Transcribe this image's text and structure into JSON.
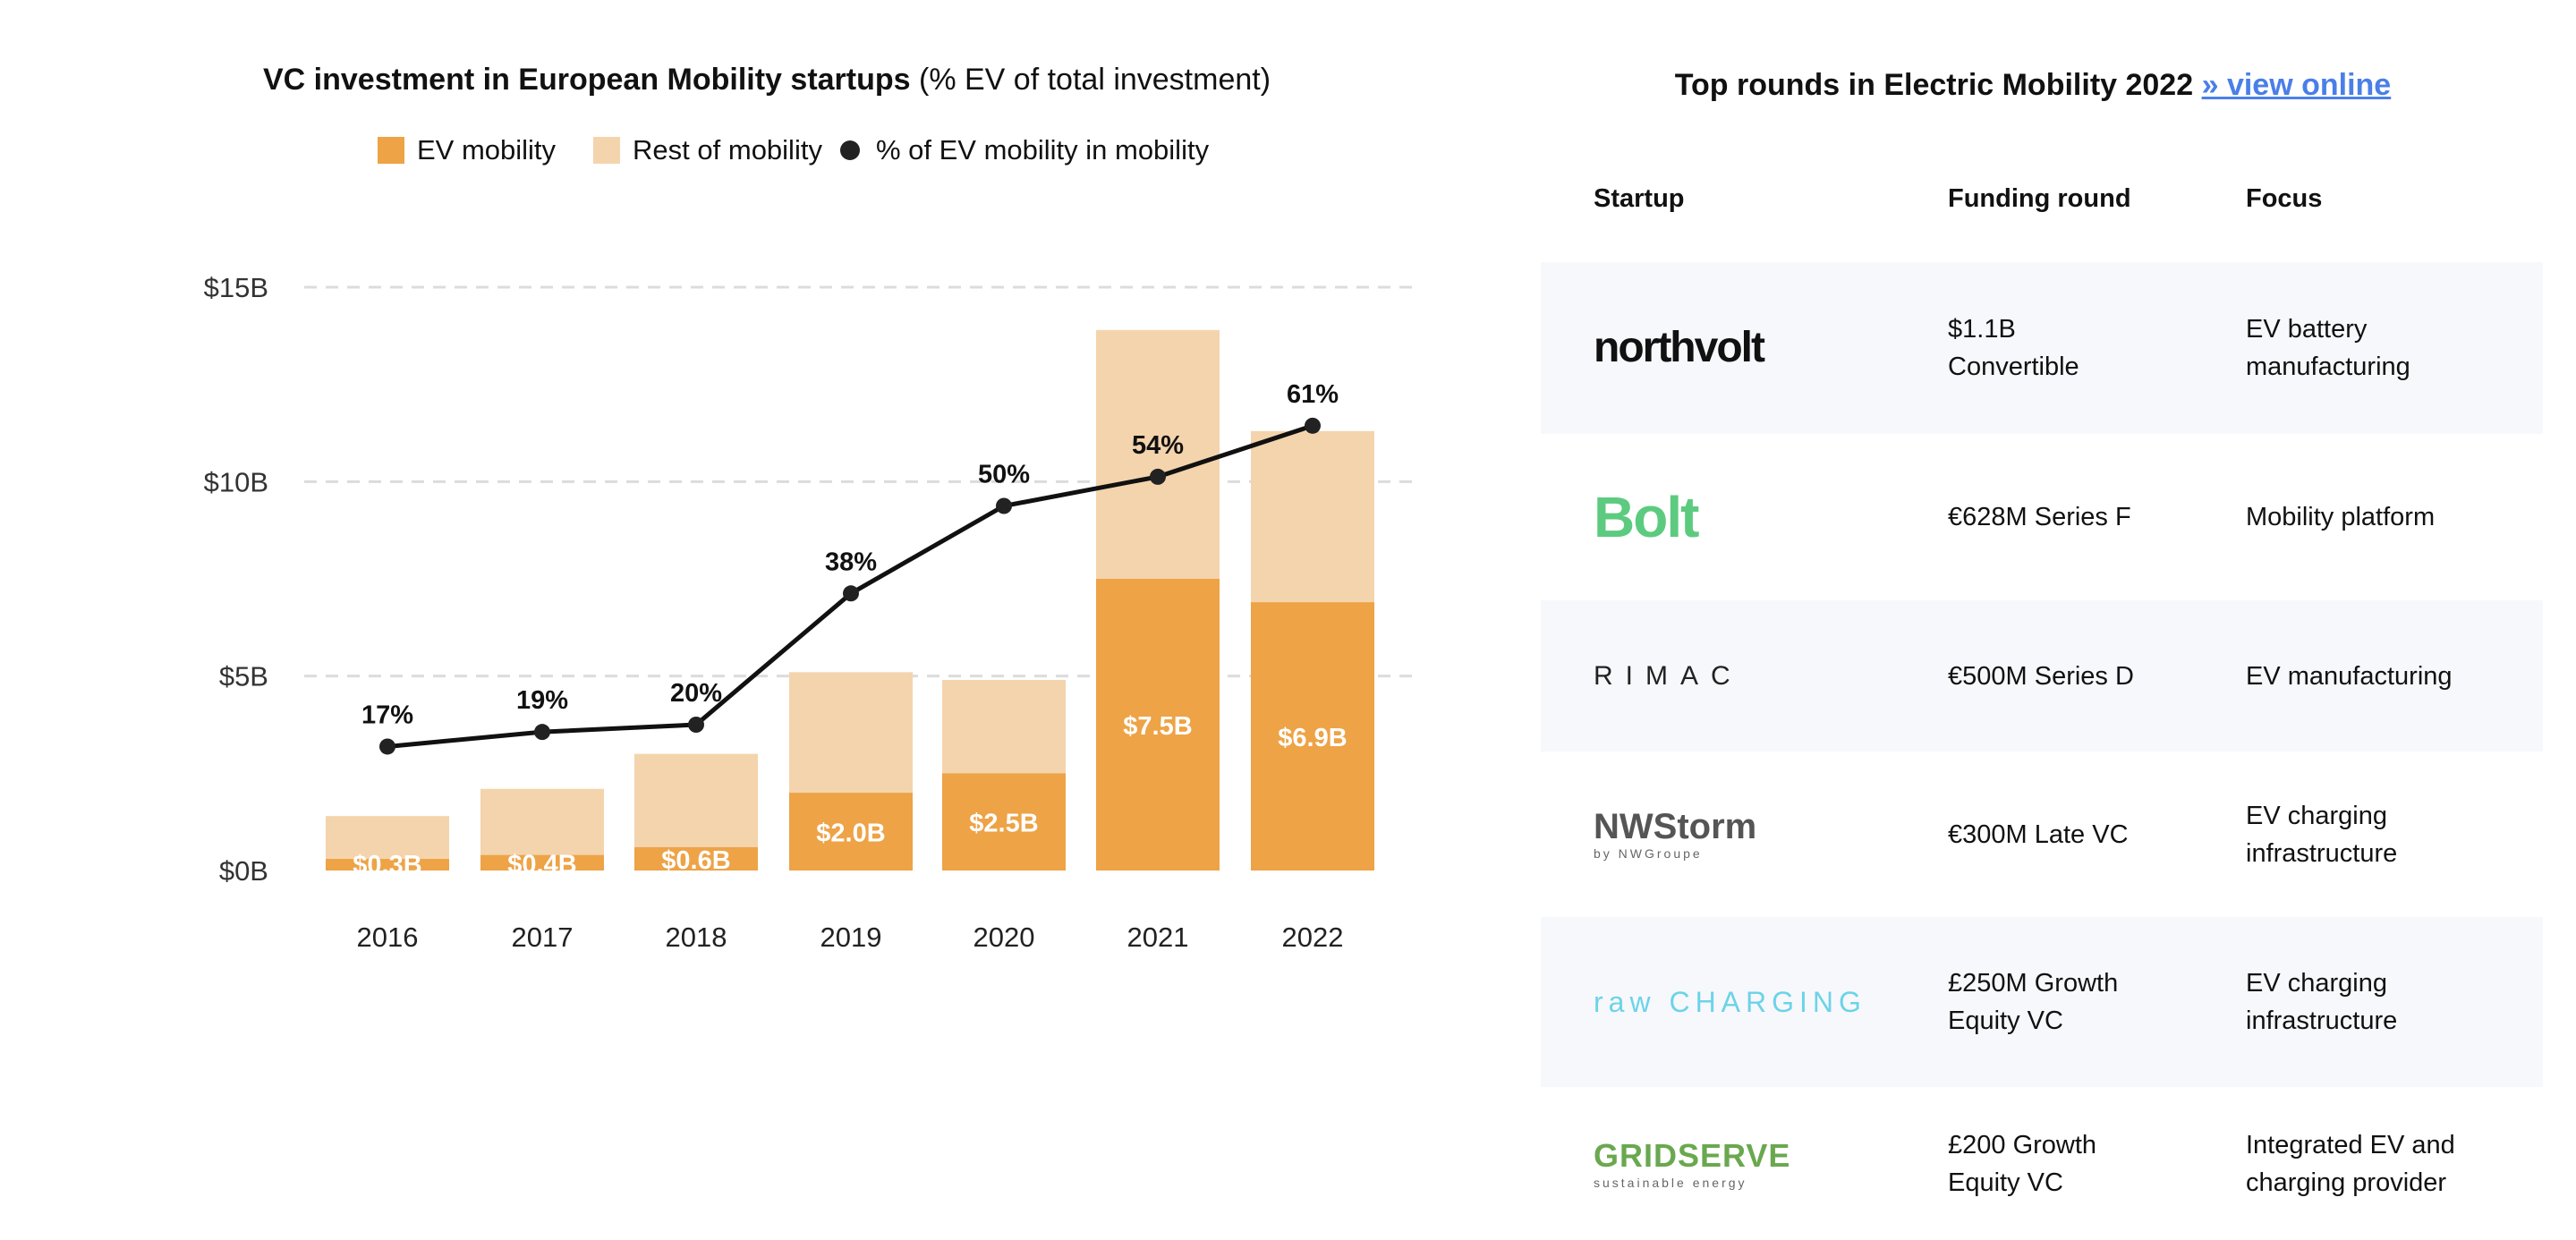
{
  "chart_data": {
    "type": "bar",
    "stacked": true,
    "title_bold": "VC investment in European Mobility startups",
    "title_rest": "(% EV of total investment)",
    "categories": [
      "2016",
      "2017",
      "2018",
      "2019",
      "2020",
      "2021",
      "2022"
    ],
    "series": [
      {
        "name": "EV mobility",
        "color": "#eda346",
        "values": [
          0.3,
          0.4,
          0.6,
          2.0,
          2.5,
          7.5,
          6.9
        ],
        "labels": [
          "$0.3B",
          "$0.4B",
          "$0.6B",
          "$2.0B",
          "$2.5B",
          "$7.5B",
          "$6.9B"
        ]
      },
      {
        "name": "Rest of mobility",
        "color": "#f4d4ad",
        "values": [
          1.1,
          1.7,
          2.4,
          3.1,
          2.4,
          6.4,
          4.4
        ]
      },
      {
        "name": "% of EV mobility in mobility",
        "type": "line",
        "color": "#111111",
        "values": [
          17,
          19,
          20,
          38,
          50,
          54,
          61
        ],
        "labels": [
          "17%",
          "19%",
          "20%",
          "38%",
          "50%",
          "54%",
          "61%"
        ]
      }
    ],
    "yticks": [
      "$0B",
      "$5B",
      "$10B",
      "$15B"
    ],
    "ylim": [
      0,
      15
    ],
    "y2lim": [
      0,
      80
    ],
    "grid": true,
    "legend": "top"
  },
  "table": {
    "title": "Top rounds in Electric Mobility 2022",
    "link": "» view online",
    "headers": [
      "Startup",
      "Funding round",
      "Focus"
    ],
    "rows": [
      {
        "startup": "northvolt",
        "round": [
          "$1.1B",
          "Convertible"
        ],
        "focus": [
          "EV battery",
          "manufacturing"
        ]
      },
      {
        "startup": "Bolt",
        "round": [
          "€628M Series F"
        ],
        "focus": [
          "Mobility platform"
        ]
      },
      {
        "startup": "RIMAC",
        "round": [
          "€500M Series D"
        ],
        "focus": [
          "EV manufacturing"
        ]
      },
      {
        "startup": "NWStorm",
        "startup_sub": "by NWGroupe",
        "round": [
          "€300M Late VC"
        ],
        "focus": [
          "EV charging",
          "infrastructure"
        ]
      },
      {
        "startup": "raw CHARGING",
        "round": [
          "£250M Growth",
          "Equity VC"
        ],
        "focus": [
          "EV charging",
          "infrastructure"
        ]
      },
      {
        "startup": "GRIDSERVE",
        "startup_sub": "sustainable energy",
        "round": [
          "£200 Growth",
          "Equity VC"
        ],
        "focus": [
          "Integrated EV and",
          "charging provider"
        ]
      }
    ]
  }
}
